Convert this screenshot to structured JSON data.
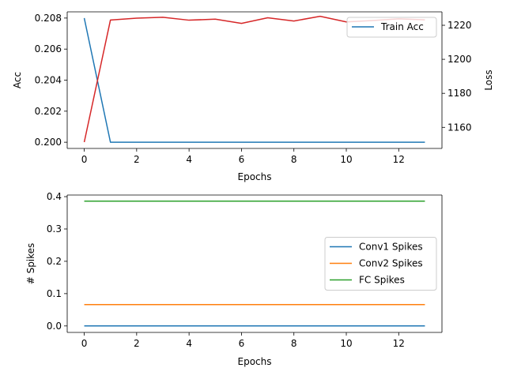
{
  "chart_data": [
    {
      "type": "line",
      "xlabel": "Epochs",
      "ylabel": "Acc",
      "y2label": "Loss",
      "x": [
        0,
        1,
        2,
        3,
        4,
        5,
        6,
        7,
        8,
        9,
        10,
        11,
        12,
        13
      ],
      "xticks": [
        "0",
        "2",
        "4",
        "6",
        "8",
        "10",
        "12"
      ],
      "yticks": [
        "0.200",
        "0.202",
        "0.204",
        "0.206",
        "0.208"
      ],
      "y2ticks": [
        "1160",
        "1180",
        "1200",
        "1220"
      ],
      "xlim": [
        -0.65,
        13.65
      ],
      "ylim": [
        0.1996,
        0.2084
      ],
      "y2lim": [
        1147.6,
        1227.9
      ],
      "legend_position": "upper right",
      "series": [
        {
          "name": "Train Acc",
          "axis": "left",
          "color": "#1f77b4",
          "values": [
            0.208,
            0.2,
            0.2,
            0.2,
            0.2,
            0.2,
            0.2,
            0.2,
            0.2,
            0.2,
            0.2,
            0.2,
            0.2,
            0.2
          ]
        },
        {
          "axis": "right",
          "color": "#d62728",
          "values": [
            1151.3,
            1223.1,
            1224.2,
            1224.7,
            1223.0,
            1223.6,
            1221.1,
            1224.4,
            1222.5,
            1225.3,
            1222.0,
            1222.8,
            1223.8,
            1223.2
          ]
        }
      ]
    },
    {
      "type": "line",
      "xlabel": "Epochs",
      "ylabel": "# Spikes",
      "x": [
        0,
        1,
        2,
        3,
        4,
        5,
        6,
        7,
        8,
        9,
        10,
        11,
        12,
        13
      ],
      "xticks": [
        "0",
        "2",
        "4",
        "6",
        "8",
        "10",
        "12"
      ],
      "yticks": [
        "0.0",
        "0.1",
        "0.2",
        "0.3",
        "0.4"
      ],
      "xlim": [
        -0.65,
        13.65
      ],
      "ylim": [
        -0.02,
        0.405
      ],
      "legend_position": "center right",
      "series": [
        {
          "name": "Conv1 Spikes",
          "color": "#1f77b4",
          "values": [
            0.0,
            0.0,
            0.0,
            0.0,
            0.0,
            0.0,
            0.0,
            0.0,
            0.0,
            0.0,
            0.0,
            0.0,
            0.0,
            0.0
          ]
        },
        {
          "name": "Conv2 Spikes",
          "color": "#ff7f0e",
          "values": [
            0.066,
            0.066,
            0.066,
            0.066,
            0.066,
            0.066,
            0.066,
            0.066,
            0.066,
            0.066,
            0.066,
            0.066,
            0.066,
            0.066
          ]
        },
        {
          "name": "FC Spikes",
          "color": "#2ca02c",
          "values": [
            0.386,
            0.386,
            0.386,
            0.386,
            0.386,
            0.386,
            0.386,
            0.386,
            0.386,
            0.386,
            0.386,
            0.386,
            0.386,
            0.386
          ]
        }
      ]
    }
  ]
}
